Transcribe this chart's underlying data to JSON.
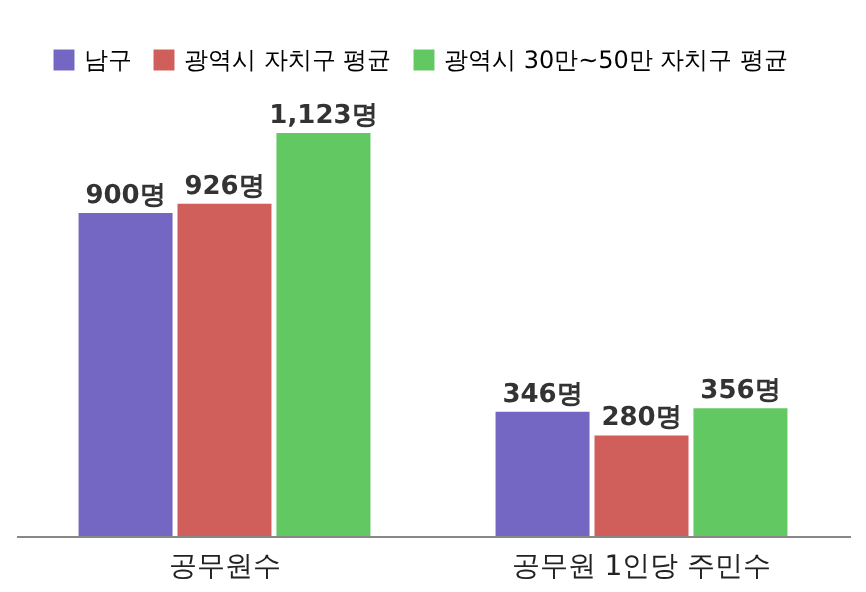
{
  "chart_data": {
    "type": "bar",
    "categories": [
      "공무원수",
      "공무원 1인당 주민수"
    ],
    "series": [
      {
        "name": "남구",
        "color": "#7467c4",
        "values": [
          900,
          346
        ],
        "value_labels": [
          "900명",
          "346명"
        ]
      },
      {
        "name": "광역시 자치구 평균",
        "color": "#d05f5b",
        "values": [
          926,
          280
        ],
        "value_labels": [
          "926명",
          "280명"
        ]
      },
      {
        "name": "광역시 30만~50만 자치구 평균",
        "color": "#62c962",
        "values": [
          1123,
          356
        ],
        "value_labels": [
          "1,123명",
          "356명"
        ]
      }
    ],
    "legend": "top left",
    "grid": false
  }
}
